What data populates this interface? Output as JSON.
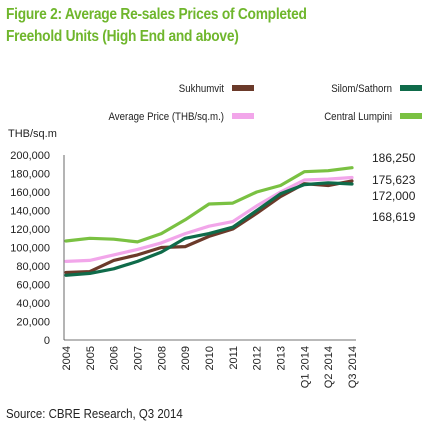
{
  "chart_data": {
    "type": "line",
    "title": "Figure 2: Average Re-sales Prices of Completed Freehold Units (High End and above)",
    "ylabel": "THB/sq.m",
    "source": "Source: CBRE Research, Q3 2014",
    "categories": [
      "2004",
      "2005",
      "2006",
      "2007",
      "2008",
      "2009",
      "2010",
      "2011",
      "2012",
      "2013",
      "Q1 2014",
      "Q2 2014",
      "Q3 2014"
    ],
    "ylim": [
      0,
      200000
    ],
    "yticks": [
      "200,000",
      "180,000",
      "160,000",
      "140,000",
      "120,000",
      "100,000",
      "80,000",
      "60,000",
      "40,000",
      "20,000",
      "0"
    ],
    "ytick_values": [
      200000,
      180000,
      160000,
      140000,
      120000,
      100000,
      80000,
      60000,
      40000,
      20000,
      0
    ],
    "legend_placement": "top",
    "series": [
      {
        "name": "Sukhumvit",
        "color": "#6b3a2a",
        "values": [
          73000,
          74000,
          86000,
          92000,
          100000,
          101000,
          112000,
          120000,
          137000,
          155000,
          169000,
          167000,
          172000
        ]
      },
      {
        "name": "Silom/Sathorn",
        "color": "#0f6b4a",
        "values": [
          70000,
          72000,
          77000,
          85000,
          95000,
          110000,
          115000,
          122000,
          140000,
          158000,
          168000,
          170000,
          168619
        ]
      },
      {
        "name": "Average Price (THB/sq.m.)",
        "color": "#f2a6ea",
        "values": [
          85000,
          86000,
          92000,
          98000,
          105000,
          115000,
          123000,
          128000,
          145000,
          160000,
          173000,
          174000,
          175623
        ]
      },
      {
        "name": "Central Lumpini",
        "color": "#7ac142",
        "values": [
          107000,
          110000,
          109000,
          106000,
          115000,
          130000,
          147000,
          148000,
          160000,
          167000,
          182000,
          183000,
          186250
        ]
      }
    ],
    "end_labels": [
      "186,250",
      "175,623",
      "172,000",
      "168,619"
    ],
    "grid": false
  }
}
